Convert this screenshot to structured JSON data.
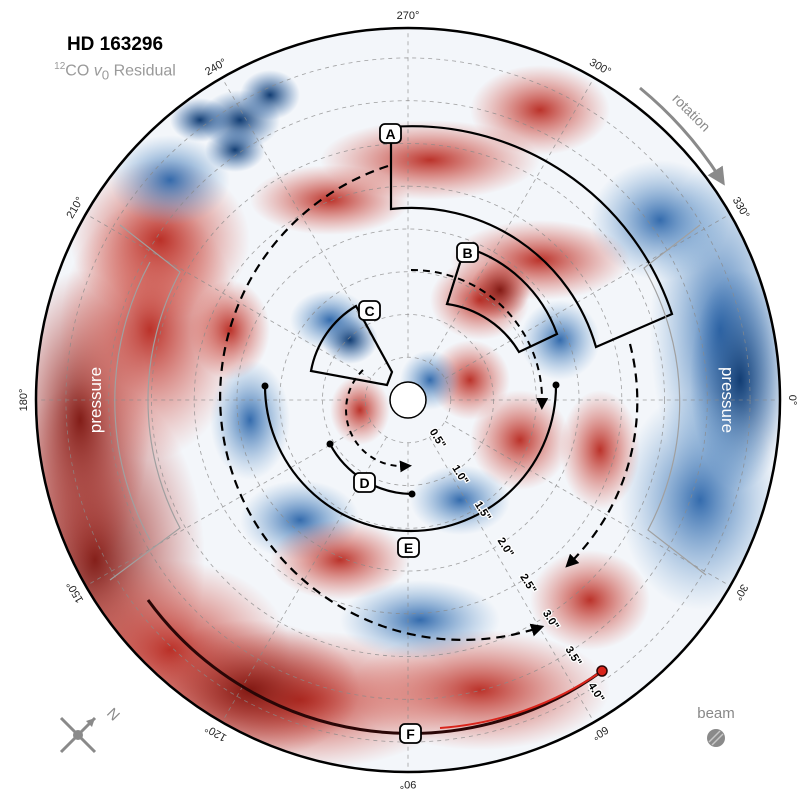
{
  "title": "HD 163296",
  "subtitle": {
    "iso": "12",
    "mol": "CO ",
    "var": "v",
    "sub": "0",
    "rest": " Residual"
  },
  "angle_labels": [
    {
      "text": "270°",
      "angle": 270
    },
    {
      "text": "300°",
      "angle": 300
    },
    {
      "text": "330°",
      "angle": 330
    },
    {
      "text": "0°",
      "angle": 0
    },
    {
      "text": "30°",
      "angle": 30
    },
    {
      "text": "60°",
      "angle": 60
    },
    {
      "text": "90°",
      "angle": 90
    },
    {
      "text": "120°",
      "angle": 120
    },
    {
      "text": "150°",
      "angle": 150
    },
    {
      "text": "180°",
      "angle": 180
    },
    {
      "text": "210°",
      "angle": 210
    },
    {
      "text": "240°",
      "angle": 240
    }
  ],
  "radius_labels": [
    {
      "text": "0.5\"",
      "r": 0.5
    },
    {
      "text": "1.0\"",
      "r": 1.0
    },
    {
      "text": "1.5\"",
      "r": 1.5
    },
    {
      "text": "2.0\"",
      "r": 2.0
    },
    {
      "text": "2.5\"",
      "r": 2.5
    },
    {
      "text": "3.0\"",
      "r": 3.0
    },
    {
      "text": "3.5\"",
      "r": 3.5
    },
    {
      "text": "4.0\"",
      "r": 4.0
    }
  ],
  "max_radius_arcsec": 4.35,
  "features": {
    "A": "A",
    "B": "B",
    "C": "C",
    "D": "D",
    "E": "E",
    "F": "F"
  },
  "pressure_left": "pressure",
  "pressure_right": "pressure",
  "rotation_label": "rotation",
  "beam_label": "beam",
  "compass_label": "N",
  "colors": {
    "red": "#c1392b",
    "dark_red": "#8e1a14",
    "blue": "#2e6db3",
    "dark_blue": "#15457f",
    "grid": "#8a8a8a",
    "annotation": "#000000"
  }
}
